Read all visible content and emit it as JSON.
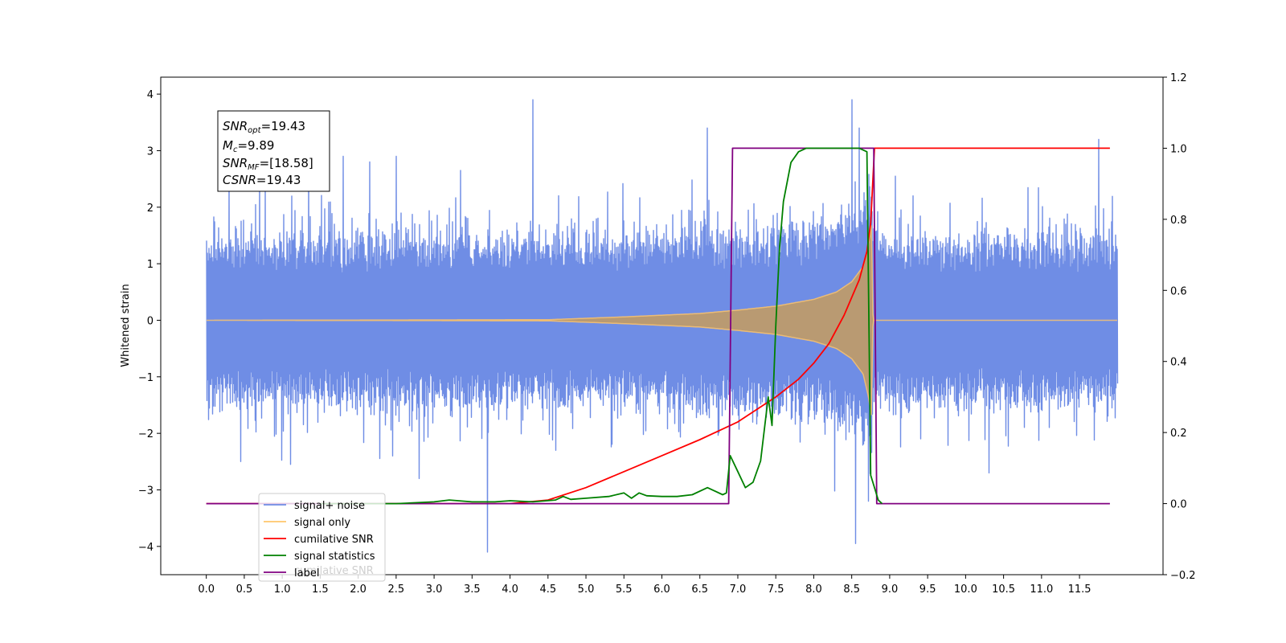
{
  "chart_data": {
    "type": "line",
    "title": "",
    "xlabel": "",
    "ylabel": "Whitened strain",
    "xlim": [
      -0.6,
      12.6
    ],
    "ylim": [
      -4.5,
      4.3
    ],
    "y2lim": [
      -0.2,
      1.2
    ],
    "grid": false,
    "x_ticks": [
      0.0,
      0.5,
      1.0,
      1.5,
      2.0,
      2.5,
      3.0,
      3.5,
      4.0,
      4.5,
      5.0,
      5.5,
      6.0,
      6.5,
      7.0,
      7.5,
      8.0,
      8.5,
      9.0,
      9.5,
      10.0,
      10.5,
      11.0,
      11.5
    ],
    "x_tick_labels": [
      "0.0",
      "0.5",
      "1.0",
      "1.5",
      "2.0",
      "2.5",
      "3.0",
      "3.5",
      "4.0",
      "4.5",
      "5.0",
      "5.5",
      "6.0",
      "6.5",
      "7.0",
      "7.5",
      "8.0",
      "8.5",
      "9.0",
      "9.5",
      "10.0",
      "10.5",
      "11.0",
      "11.5"
    ],
    "y_ticks": [
      4,
      3,
      2,
      1,
      0,
      -1,
      -2,
      -3,
      -4
    ],
    "y_tick_labels": [
      "4",
      "3",
      "2",
      "1",
      "0",
      "−1",
      "−2",
      "−3",
      "−4"
    ],
    "y2_ticks": [
      1.2,
      1.0,
      0.8,
      0.6,
      0.4,
      0.2,
      0.0,
      -0.2
    ],
    "y2_tick_labels": [
      "1.2",
      "1.0",
      "0.8",
      "0.6",
      "0.4",
      "0.2",
      "0.0",
      "−0.2"
    ],
    "annotation_lines": [
      {
        "sym": "SNR",
        "sub": "opt",
        "val": "=19.43"
      },
      {
        "sym": "M",
        "sub": "c",
        "val": "=9.89"
      },
      {
        "sym": "SNR",
        "sub": "MF",
        "val": "=[18.58]"
      },
      {
        "sym": "CSNR",
        "sub": "",
        "val": "=19.43"
      }
    ],
    "legend": {
      "placement": "lower-left",
      "entries": [
        {
          "label": "signal+ noise",
          "color": "#6f8de5"
        },
        {
          "label": "signal only",
          "color": "#ffc66b"
        },
        {
          "label": "cumilative SNR",
          "color": "#ff0000"
        },
        {
          "label": "signal statistics",
          "color": "#008000"
        },
        {
          "label": "label",
          "color": "#800080"
        }
      ],
      "ghost_text": "cumilative SNR"
    },
    "series": [
      {
        "label": "signal+ noise",
        "axis": "left",
        "color": "#6f8de5",
        "x_range": [
          0.0,
          12.0
        ],
        "noise_envelope": {
          "x": [
            0.0,
            4.0,
            6.0,
            7.0,
            8.0,
            8.5,
            8.75,
            8.8,
            12.0
          ],
          "y": [
            1.1,
            1.1,
            1.1,
            1.15,
            1.25,
            1.55,
            1.9,
            1.1,
            1.1
          ]
        },
        "spikes": [
          [
            0.3,
            2.55
          ],
          [
            0.7,
            2.7
          ],
          [
            1.35,
            2.75
          ],
          [
            1.8,
            2.9
          ],
          [
            2.15,
            2.8
          ],
          [
            2.5,
            2.9
          ],
          [
            3.35,
            2.65
          ],
          [
            4.3,
            3.9
          ],
          [
            6.6,
            3.4
          ],
          [
            8.5,
            3.9
          ],
          [
            8.6,
            3.4
          ],
          [
            11.75,
            3.2
          ],
          [
            0.45,
            -2.5
          ],
          [
            1.1,
            -2.55
          ],
          [
            2.8,
            -2.8
          ],
          [
            3.7,
            -4.1
          ],
          [
            4.6,
            -2.3
          ],
          [
            8.55,
            -3.95
          ],
          [
            8.72,
            -3.2
          ],
          [
            10.3,
            -2.7
          ]
        ]
      },
      {
        "label": "signal only",
        "axis": "left",
        "color": "#ffc66b",
        "x_range": [
          0.0,
          12.0
        ],
        "envelope": {
          "x": [
            0.0,
            4.5,
            5.5,
            6.5,
            7.0,
            7.5,
            8.0,
            8.3,
            8.5,
            8.65,
            8.72,
            8.76,
            8.78,
            12.0
          ],
          "y": [
            0.0,
            0.01,
            0.06,
            0.12,
            0.18,
            0.25,
            0.37,
            0.5,
            0.68,
            0.95,
            1.35,
            1.7,
            0.0,
            0.0
          ]
        }
      },
      {
        "label": "cumilative SNR",
        "axis": "right",
        "color": "#ff0000",
        "x": [
          0.0,
          4.0,
          4.5,
          5.0,
          5.5,
          6.0,
          6.5,
          7.0,
          7.5,
          7.8,
          8.0,
          8.2,
          8.4,
          8.6,
          8.7,
          8.75,
          8.8,
          11.9
        ],
        "y": [
          0.0,
          0.0,
          0.01,
          0.045,
          0.09,
          0.135,
          0.18,
          0.23,
          0.3,
          0.35,
          0.395,
          0.45,
          0.53,
          0.63,
          0.71,
          0.79,
          1.0,
          1.0
        ]
      },
      {
        "label": "signal statistics",
        "axis": "right",
        "color": "#008000",
        "x": [
          1.5,
          2.5,
          3.0,
          3.2,
          3.5,
          3.8,
          4.0,
          4.3,
          4.6,
          4.7,
          4.8,
          5.0,
          5.3,
          5.5,
          5.6,
          5.7,
          5.8,
          6.0,
          6.2,
          6.4,
          6.6,
          6.8,
          6.85,
          6.9,
          7.0,
          7.1,
          7.2,
          7.3,
          7.4,
          7.45,
          7.5,
          7.55,
          7.6,
          7.7,
          7.8,
          7.9,
          8.0,
          8.2,
          8.4,
          8.6,
          8.7,
          8.75,
          8.85,
          8.9
        ],
        "y": [
          0.0,
          0.0,
          0.005,
          0.01,
          0.005,
          0.005,
          0.008,
          0.005,
          0.01,
          0.02,
          0.012,
          0.015,
          0.02,
          0.03,
          0.015,
          0.03,
          0.022,
          0.02,
          0.02,
          0.025,
          0.045,
          0.025,
          0.03,
          0.135,
          0.09,
          0.045,
          0.06,
          0.12,
          0.3,
          0.22,
          0.5,
          0.72,
          0.85,
          0.96,
          0.99,
          1.0,
          1.0,
          1.0,
          1.0,
          1.0,
          0.99,
          0.08,
          0.01,
          0.0
        ]
      },
      {
        "label": "label",
        "axis": "right",
        "color": "#800080",
        "x": [
          0.0,
          6.88,
          6.93,
          8.79,
          8.83,
          11.9
        ],
        "y": [
          0.0,
          0.0,
          1.0,
          1.0,
          0.0,
          0.0
        ]
      }
    ]
  }
}
